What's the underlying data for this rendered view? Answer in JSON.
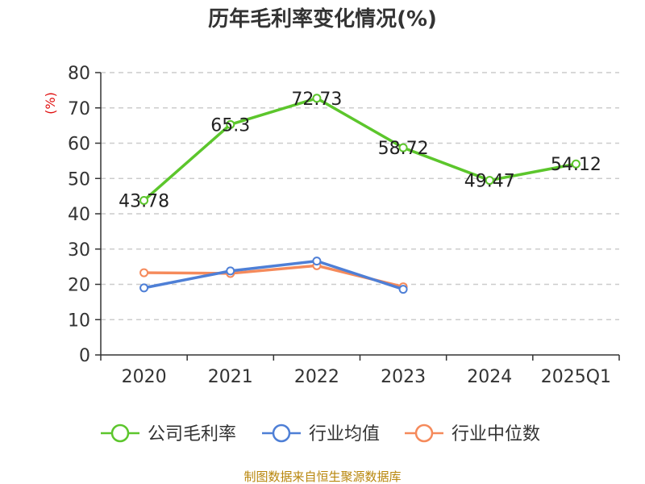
{
  "chart_data": {
    "type": "line",
    "title": "历年毛利率变化情况(%)",
    "ylabel": "(%)",
    "xlabel": "",
    "categories": [
      "2020",
      "2021",
      "2022",
      "2023",
      "2024",
      "2025Q1"
    ],
    "ylim": [
      0,
      80
    ],
    "yticks": [
      0,
      10,
      20,
      30,
      40,
      50,
      60,
      70,
      80
    ],
    "grid": true,
    "legend_position": "bottom",
    "series": [
      {
        "name": "公司毛利率",
        "color": "#5cc62c",
        "values": [
          43.78,
          65.3,
          72.73,
          58.72,
          49.47,
          54.12
        ],
        "labels": [
          "43.78",
          "65.3",
          "72.73",
          "58.72",
          "49.47",
          "54.12"
        ]
      },
      {
        "name": "行业均值",
        "color": "#4e7fd6",
        "values": [
          19.0,
          23.8,
          26.6,
          18.6,
          null,
          null
        ]
      },
      {
        "name": "行业中位数",
        "color": "#f58a5b",
        "values": [
          23.3,
          23.1,
          25.3,
          19.3,
          null,
          null
        ]
      }
    ],
    "source": "制图数据来自恒生聚源数据库"
  }
}
